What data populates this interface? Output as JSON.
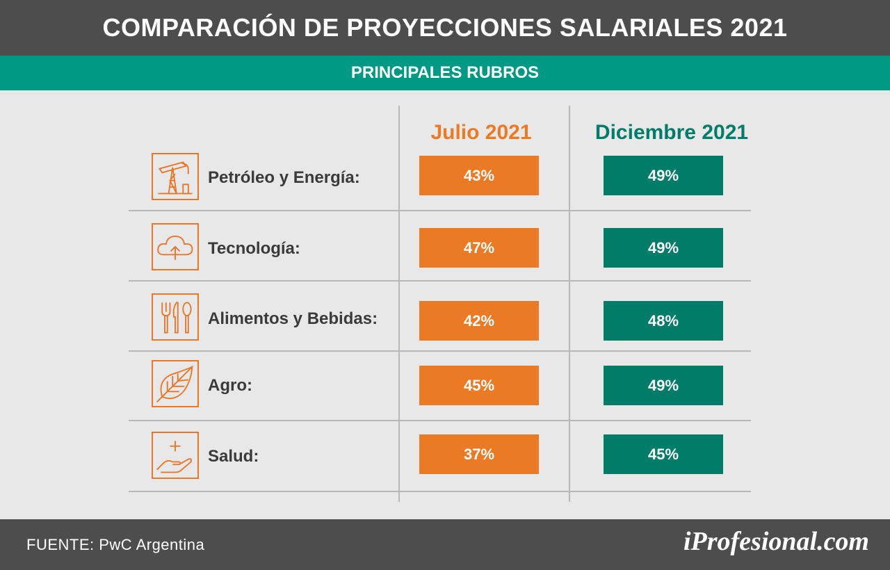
{
  "header": {
    "title": "COMPARACIÓN DE PROYECCIONES SALARIALES 2021",
    "subtitle": "PRINCIPALES RUBROS"
  },
  "footer": {
    "source": "FUENTE: PwC Argentina",
    "brand": "iProfesional.com"
  },
  "colors": {
    "julio": "#ea7b24",
    "diciembre": "#007c68",
    "header_bg": "#4d4d4d",
    "subheader_bg": "#009a84",
    "icon": "#e8772a"
  },
  "chart_data": {
    "type": "table",
    "title": "COMPARACIÓN DE PROYECCIONES SALARIALES 2021",
    "subtitle": "PRINCIPALES RUBROS",
    "columns": [
      "Julio 2021",
      "Diciembre 2021"
    ],
    "rows": [
      {
        "label": "Petróleo y Energía:",
        "icon": "oil-pump-icon",
        "julio": "43%",
        "diciembre": "49%"
      },
      {
        "label": "Tecnología:",
        "icon": "cloud-upload-icon",
        "julio": "47%",
        "diciembre": "49%"
      },
      {
        "label": "Alimentos y Bebidas:",
        "icon": "cutlery-icon",
        "julio": "42%",
        "diciembre": "48%"
      },
      {
        "label": "Agro:",
        "icon": "leaf-icon",
        "julio": "45%",
        "diciembre": "49%"
      },
      {
        "label": "Salud:",
        "icon": "hand-plus-icon",
        "julio": "37%",
        "diciembre": "45%"
      }
    ],
    "series": [
      {
        "name": "Julio 2021",
        "values": [
          43,
          47,
          42,
          45,
          37
        ]
      },
      {
        "name": "Diciembre 2021",
        "values": [
          49,
          49,
          48,
          49,
          45
        ]
      }
    ],
    "categories": [
      "Petróleo y Energía:",
      "Tecnología:",
      "Alimentos y Bebidas:",
      "Agro:",
      "Salud:"
    ]
  }
}
